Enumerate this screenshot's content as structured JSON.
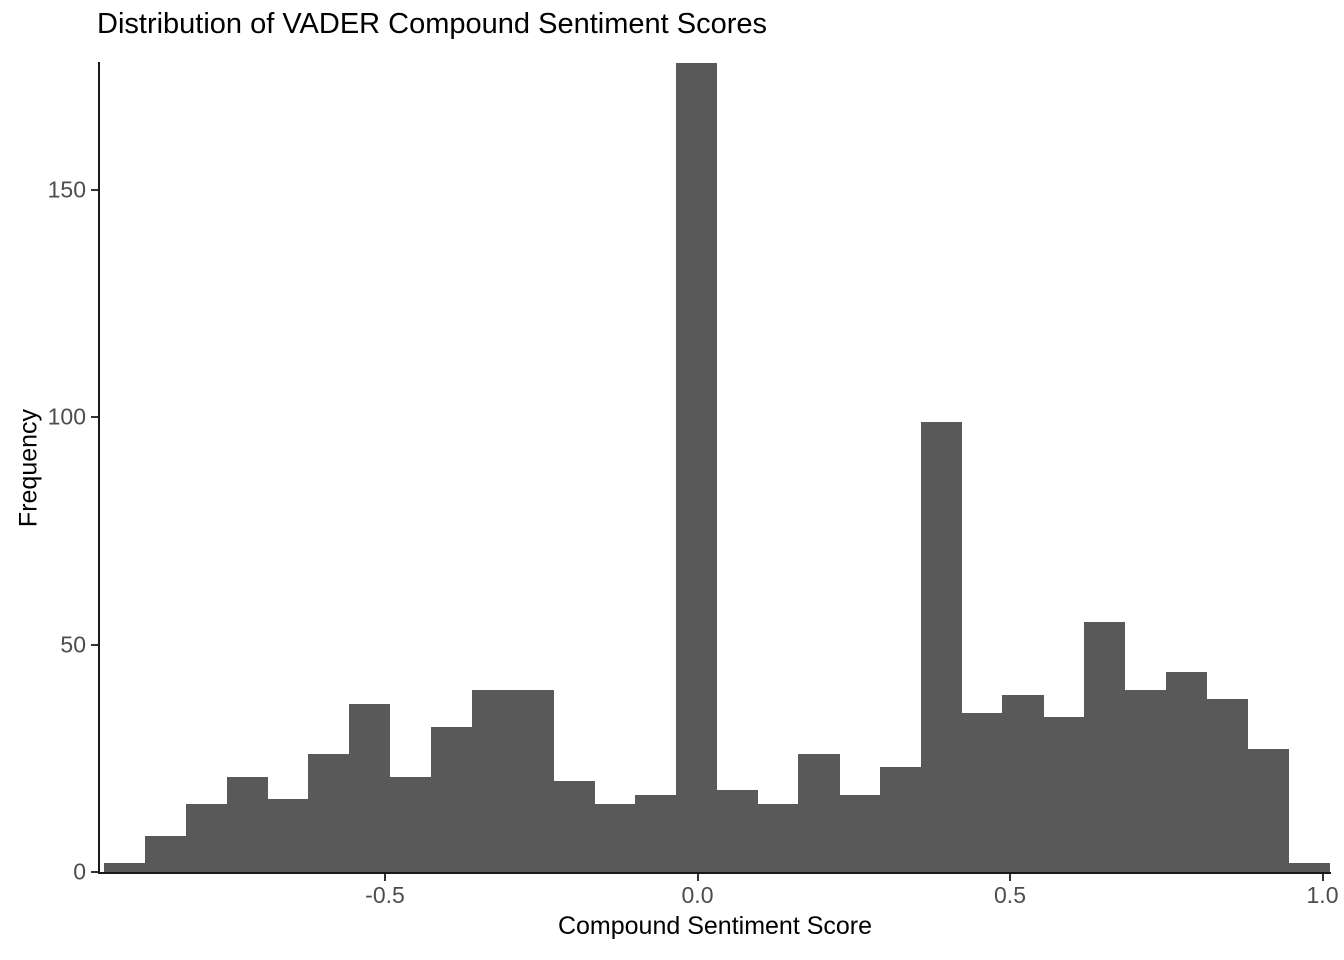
{
  "title": "Distribution of VADER Compound Sentiment Scores",
  "chart_data": {
    "type": "bar",
    "subtype": "histogram",
    "title": "Distribution of VADER Compound Sentiment Scores",
    "xlabel": "Compound Sentiment Score",
    "ylabel": "Frequency",
    "bin_start": -0.9495,
    "bin_width": 0.06533,
    "values": [
      2,
      8,
      15,
      21,
      16,
      26,
      37,
      21,
      32,
      40,
      40,
      20,
      15,
      17,
      178,
      18,
      15,
      26,
      17,
      23,
      99,
      35,
      39,
      34,
      55,
      40,
      44,
      38,
      27,
      2
    ],
    "total_count": 1000,
    "x_ticks": [
      -0.5,
      0.0,
      0.5,
      1.0
    ],
    "x_tick_labels": [
      "-0.5",
      "0.0",
      "0.5",
      "1.0"
    ],
    "y_ticks": [
      0,
      50,
      100,
      150
    ],
    "y_tick_labels": [
      "0",
      "50",
      "100",
      "150"
    ],
    "xlim": [
      -0.956,
      1.012
    ],
    "ylim": [
      0,
      178.2
    ],
    "grid": false,
    "legend": false,
    "bar_color": "#595959",
    "axis_color": "#1a1a1a",
    "tick_color": "#333333",
    "tick_label_color": "#4d4d4d"
  }
}
